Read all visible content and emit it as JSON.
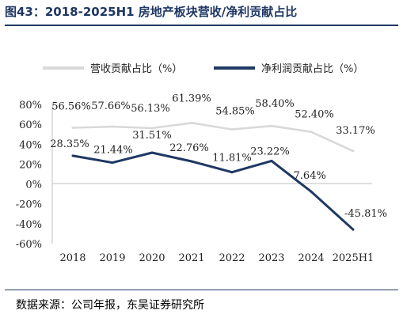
{
  "title": "图43：2018-2025H1 房地产板块营收/净利贡献占比",
  "source": "数据来源：公司年报，东吴证券研究所",
  "colors": {
    "revenue": "#d9d9d9",
    "profit": "#1f3864",
    "title": "#1f3864"
  },
  "chart_data": {
    "type": "line",
    "categories": [
      "2018",
      "2019",
      "2020",
      "2021",
      "2022",
      "2023",
      "2024",
      "2025H1"
    ],
    "series": [
      {
        "name": "营收贡献占比（%）",
        "values": [
          56.56,
          57.66,
          56.13,
          61.39,
          54.85,
          58.4,
          52.4,
          33.17
        ],
        "labels": [
          "56.56%",
          "57.66%",
          "56.13%",
          "61.39%",
          "54.85%",
          "58.40%",
          "52.40%",
          "33.17%"
        ]
      },
      {
        "name": "净利润贡献占比（%）",
        "values": [
          28.35,
          21.44,
          31.51,
          22.76,
          11.81,
          23.22,
          -7.64,
          -45.81
        ],
        "labels": [
          "28.35%",
          "21.44%",
          "31.51%",
          "22.76%",
          "11.81%",
          "23.22%",
          "-7.64%",
          "-45.81%"
        ]
      }
    ],
    "yticks": [
      "80%",
      "60%",
      "40%",
      "20%",
      "0%",
      "-20%",
      "-40%",
      "-60%"
    ],
    "ylim": [
      -60,
      80
    ],
    "legend": "top",
    "grid": false
  }
}
